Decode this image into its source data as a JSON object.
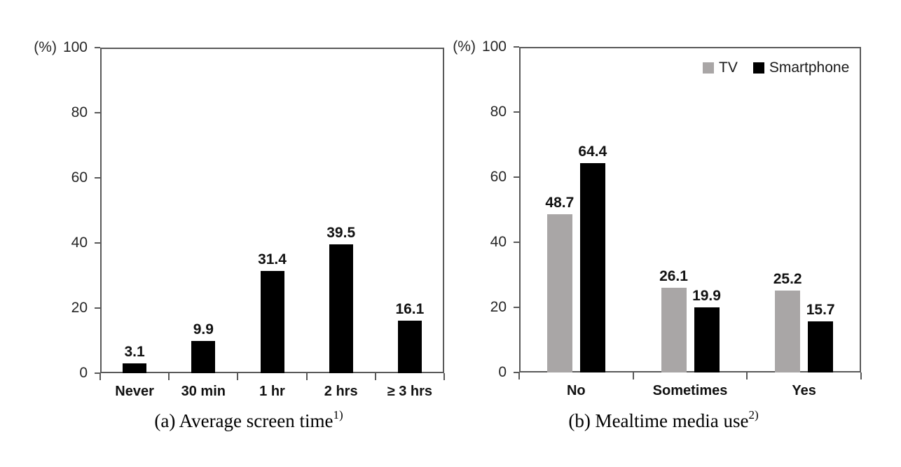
{
  "page": {
    "background": "#ffffff"
  },
  "colors": {
    "bar_black": "#000000",
    "bar_gray": "#a9a6a6",
    "axis": "#595959",
    "label_text": "#111111"
  },
  "chart_data": [
    {
      "id": "screen-time",
      "type": "bar",
      "caption": "(a) Average screen time",
      "caption_superscript": "1)",
      "unit_label": "(%)",
      "categories": [
        "Never",
        "30 min",
        "1 hr",
        "2 hrs",
        "≥ 3 hrs"
      ],
      "values": [
        3.1,
        9.9,
        31.4,
        39.5,
        16.1
      ],
      "bar_color": "#000000",
      "ylim": [
        0,
        100
      ],
      "yticks": [
        0,
        20,
        40,
        60,
        80,
        100
      ],
      "grid": false,
      "legend": null
    },
    {
      "id": "mealtime-media",
      "type": "bar",
      "caption": "(b) Mealtime media use",
      "caption_superscript": "2)",
      "unit_label": "(%)",
      "categories": [
        "No",
        "Sometimes",
        "Yes"
      ],
      "series": [
        {
          "name": "TV",
          "color": "#a9a6a6",
          "values": [
            48.7,
            26.1,
            25.2
          ]
        },
        {
          "name": "Smartphone",
          "color": "#000000",
          "values": [
            64.4,
            19.9,
            15.7
          ]
        }
      ],
      "ylim": [
        0,
        100
      ],
      "yticks": [
        0,
        20,
        40,
        60,
        80,
        100
      ],
      "grid": false,
      "legend_position": "top-right",
      "legend_entries": [
        "TV",
        "Smartphone"
      ]
    }
  ]
}
